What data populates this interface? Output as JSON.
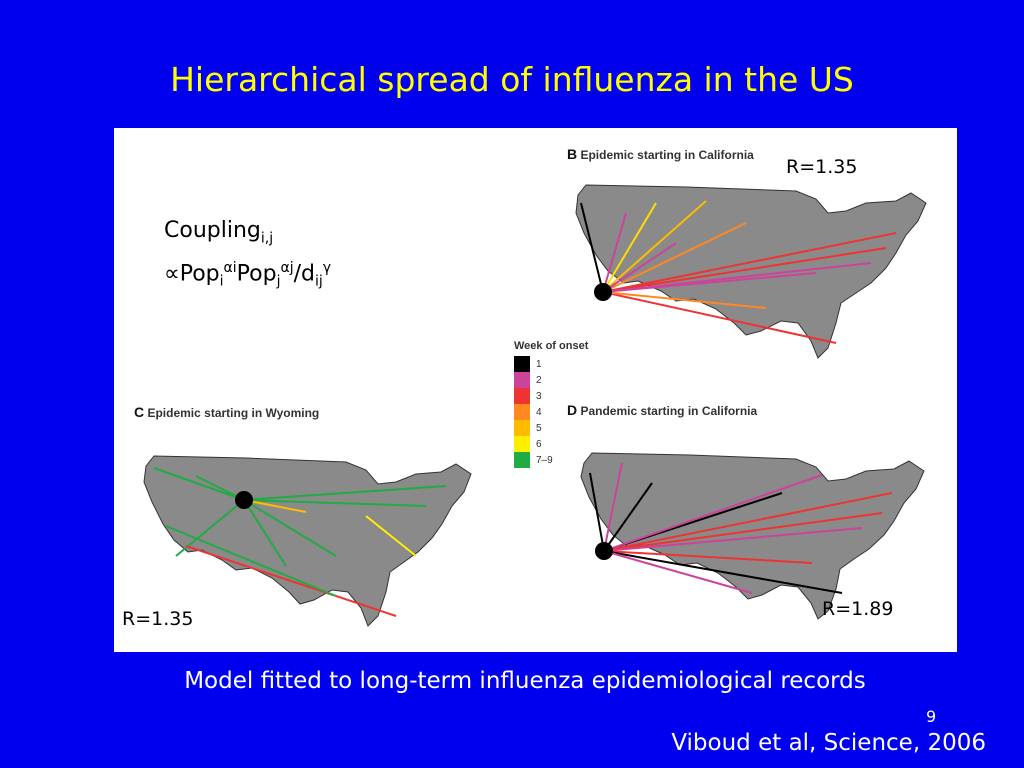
{
  "slide": {
    "title": "Hierarchical spread of influenza in the US",
    "caption": "Model fitted to long-term influenza epidemiological records",
    "page_number": "9",
    "citation": "Viboud et al, Science, 2006"
  },
  "formula": {
    "line1_base": "Coupling",
    "line1_sub": "i,j",
    "prop_symbol": "∝",
    "pop1": "Pop",
    "sub_i": "i",
    "alpha_i": "αi",
    "pop2": "Pop",
    "sub_j": "j",
    "alpha_j": "αj",
    "over_d": "/d",
    "sub_ij": "ij",
    "gamma": "γ"
  },
  "legend": {
    "title": "Week of onset",
    "items": [
      {
        "label": "1",
        "color": "#000000"
      },
      {
        "label": "2",
        "color": "#cc4499"
      },
      {
        "label": "3",
        "color": "#ee3333"
      },
      {
        "label": "4",
        "color": "#ff8822"
      },
      {
        "label": "5",
        "color": "#ffbb00"
      },
      {
        "label": "6",
        "color": "#ffee00"
      },
      {
        "label": "7–9",
        "color": "#22aa44"
      }
    ]
  },
  "panels": {
    "b": {
      "letter": "B",
      "title": "Epidemic starting in California",
      "r_label": "R=1.35"
    },
    "c": {
      "letter": "C",
      "title": "Epidemic starting in Wyoming",
      "r_label": "R=1.35"
    },
    "d": {
      "letter": "D",
      "title": "Pandemic starting in California",
      "r_label": "R=1.89"
    }
  }
}
